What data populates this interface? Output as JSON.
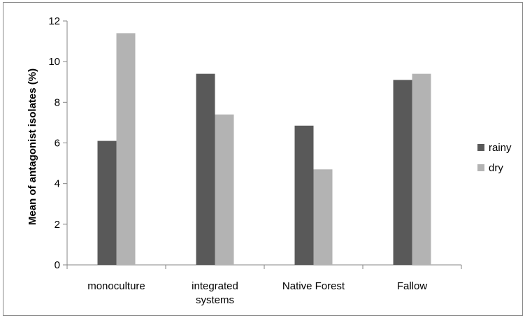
{
  "chart_data": {
    "type": "bar",
    "title": "",
    "xlabel": "",
    "ylabel": "Mean of antagonist isolates (%)",
    "ylim": [
      0,
      12
    ],
    "yticks": [
      0,
      2,
      4,
      6,
      8,
      10,
      12
    ],
    "grid": false,
    "legend_position": "right",
    "categories": [
      [
        "monoculture"
      ],
      [
        "integrated",
        "systems"
      ],
      [
        "Native Forest"
      ],
      [
        "Fallow"
      ]
    ],
    "series": [
      {
        "name": "rainy",
        "color": "#595959",
        "values": [
          6.1,
          9.4,
          6.85,
          9.1
        ]
      },
      {
        "name": "dry",
        "color": "#b3b3b3",
        "values": [
          11.4,
          7.4,
          4.7,
          9.4
        ]
      }
    ]
  }
}
